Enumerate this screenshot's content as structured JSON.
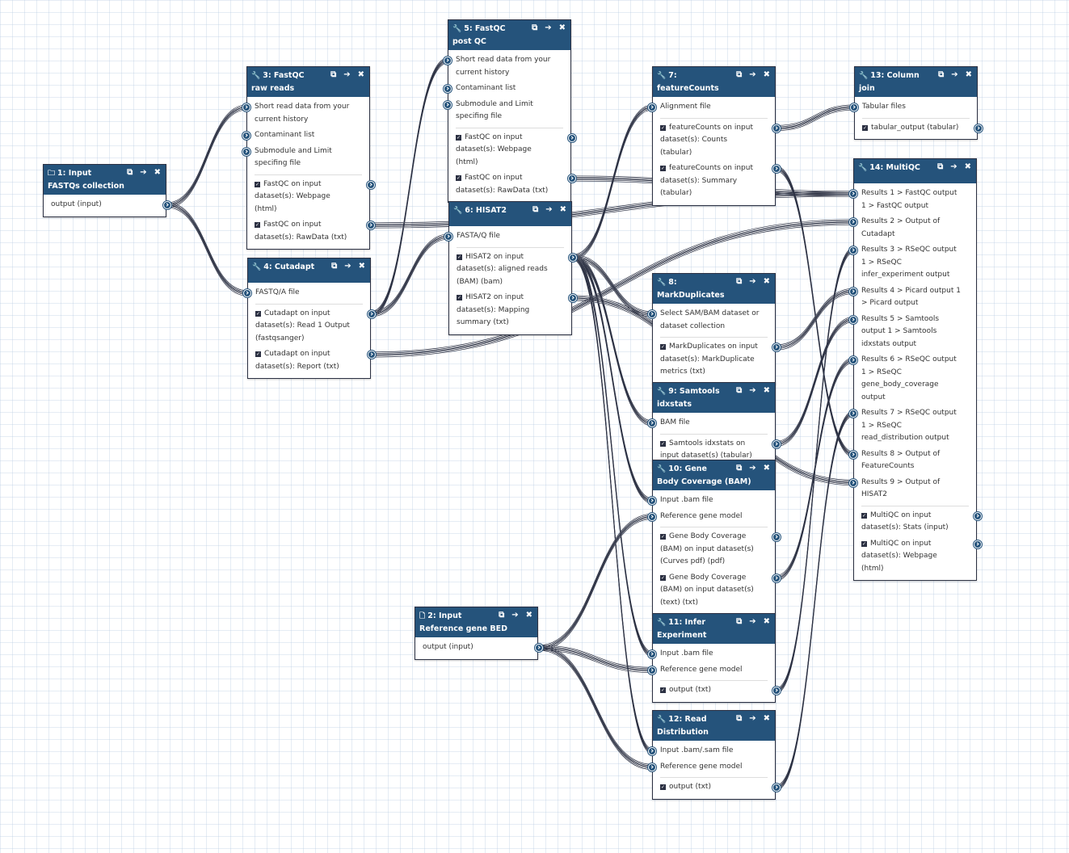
{
  "colors": {
    "header": "#25537b",
    "wire": "#2c3143"
  },
  "icons": {
    "tool": "wrench-icon",
    "input": "folder-icon",
    "file": "file-icon",
    "copy": "copy-icon",
    "arrow": "arrow-right-icon",
    "close": "close-icon"
  },
  "nodes": [
    {
      "id": "n1",
      "title_num": "1: Input",
      "title_rest": "FASTQs collection",
      "icon": "folder",
      "inputs": [],
      "outputs": [
        "output (input)"
      ]
    },
    {
      "id": "n2",
      "title_num": "2: Input",
      "title_rest": "Reference gene BED",
      "icon": "file",
      "inputs": [],
      "outputs": [
        "output (input)"
      ]
    },
    {
      "id": "n3",
      "title_num": "3: FastQC",
      "title_rest": "raw reads",
      "icon": "tool",
      "inputs": [
        "Short read data from your current history",
        "Contaminant list",
        "Submodule and Limit specifing file"
      ],
      "outputs": [
        "FastQC on input dataset(s): Webpage (html)",
        "FastQC on input dataset(s): RawData (txt)"
      ]
    },
    {
      "id": "n4",
      "title_num": "4: Cutadapt",
      "title_rest": "",
      "icon": "tool",
      "inputs": [
        "FASTQ/A file"
      ],
      "outputs": [
        "Cutadapt on input dataset(s): Read 1 Output (fastqsanger)",
        "Cutadapt on input dataset(s): Report (txt)"
      ]
    },
    {
      "id": "n5",
      "title_num": "5: FastQC",
      "title_rest": "post QC",
      "icon": "tool",
      "inputs": [
        "Short read data from your current history",
        "Contaminant list",
        "Submodule and Limit specifing file"
      ],
      "outputs": [
        "FastQC on input dataset(s): Webpage (html)",
        "FastQC on input dataset(s): RawData (txt)"
      ]
    },
    {
      "id": "n6",
      "title_num": "6: HISAT2",
      "title_rest": "",
      "icon": "tool",
      "inputs": [
        "FASTA/Q file"
      ],
      "outputs": [
        "HISAT2 on input dataset(s): aligned reads (BAM) (bam)",
        "HISAT2 on input dataset(s): Mapping summary (txt)"
      ]
    },
    {
      "id": "n7",
      "title_num": "7:",
      "title_rest": "featureCounts",
      "icon": "tool",
      "inputs": [
        "Alignment file"
      ],
      "outputs": [
        "featureCounts on input dataset(s): Counts (tabular)",
        "featureCounts on input dataset(s): Summary (tabular)"
      ]
    },
    {
      "id": "n8",
      "title_num": "8:",
      "title_rest": "MarkDuplicates",
      "icon": "tool",
      "inputs": [
        "Select SAM/BAM dataset or dataset collection"
      ],
      "outputs": [
        "MarkDuplicates on input dataset(s): MarkDuplicate metrics (txt)"
      ]
    },
    {
      "id": "n9",
      "title_num": "9: Samtools",
      "title_rest": "idxstats",
      "icon": "tool",
      "inputs": [
        "BAM file"
      ],
      "outputs": [
        "Samtools idxstats on input dataset(s) (tabular)"
      ]
    },
    {
      "id": "n10",
      "title_num": "10: Gene",
      "title_rest": "Body Coverage (BAM)",
      "icon": "tool",
      "inputs": [
        "Input .bam file",
        "Reference gene model"
      ],
      "outputs": [
        "Gene Body Coverage (BAM) on input dataset(s) (Curves pdf) (pdf)",
        "Gene Body Coverage (BAM) on input dataset(s) (text) (txt)"
      ]
    },
    {
      "id": "n11",
      "title_num": "11: Infer",
      "title_rest": "Experiment",
      "icon": "tool",
      "inputs": [
        "Input .bam file",
        "Reference gene model"
      ],
      "outputs": [
        "output (txt)"
      ]
    },
    {
      "id": "n12",
      "title_num": "12: Read",
      "title_rest": "Distribution",
      "icon": "tool",
      "inputs": [
        "Input .bam/.sam file",
        "Reference gene model"
      ],
      "outputs": [
        "output (txt)"
      ]
    },
    {
      "id": "n13",
      "title_num": "13: Column",
      "title_rest": "join",
      "icon": "tool",
      "inputs": [
        "Tabular files"
      ],
      "outputs": [
        "tabular_output (tabular)"
      ]
    },
    {
      "id": "n14",
      "title_num": "14: MultiQC",
      "title_rest": "",
      "icon": "tool",
      "inputs": [
        "Results 1 > FastQC output 1 > FastQC output",
        "Results 2 > Output of Cutadapt",
        "Results 3 > RSeQC output 1 > RSeQC infer_experiment output",
        "Results 4 > Picard output 1 > Picard output",
        "Results 5 > Samtools output 1 > Samtools idxstats output",
        "Results 6 > RSeQC output 1 > RSeQC gene_body_coverage output",
        "Results 7 > RSeQC output 1 > RSeQC read_distribution output",
        "Results 8 > Output of FeatureCounts",
        "Results 9 > Output of HISAT2"
      ],
      "outputs": [
        "MultiQC on input dataset(s): Stats (input)",
        "MultiQC on input dataset(s): Webpage (html)"
      ]
    }
  ]
}
